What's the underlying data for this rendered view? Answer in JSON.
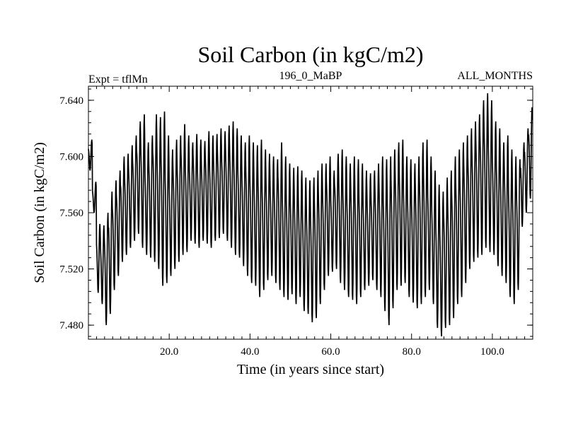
{
  "chart_data": {
    "type": "line",
    "title": "Soil Carbon (in kgC/m2)",
    "subtitle_left": "Expt = tflMn",
    "subtitle_center": "196_0_MaBP",
    "subtitle_right": "ALL_MONTHS",
    "xlabel": "Time (in years since start)",
    "ylabel": "Soil Carbon (in kgC/m2)",
    "xlim": [
      0,
      110
    ],
    "ylim": [
      7.47,
      7.65
    ],
    "xticks": [
      20,
      40,
      60,
      80,
      100
    ],
    "xtick_labels": [
      "20.0",
      "40.0",
      "60.0",
      "80.0",
      "100.0"
    ],
    "yticks": [
      7.48,
      7.52,
      7.56,
      7.6,
      7.64
    ],
    "ytick_labels": [
      "7.480",
      "7.520",
      "7.560",
      "7.600",
      "7.640"
    ],
    "grid": false,
    "series": [
      {
        "name": "Soil Carbon",
        "samples_per_year": 12,
        "annual_highs": [
          7.612,
          7.582,
          7.552,
          7.551,
          7.56,
          7.575,
          7.583,
          7.59,
          7.6,
          7.602,
          7.608,
          7.615,
          7.625,
          7.63,
          7.61,
          7.615,
          7.63,
          7.628,
          7.632,
          7.615,
          7.605,
          7.612,
          7.615,
          7.623,
          7.615,
          7.61,
          7.616,
          7.612,
          7.611,
          7.618,
          7.615,
          7.616,
          7.62,
          7.618,
          7.622,
          7.625,
          7.62,
          7.615,
          7.61,
          7.615,
          7.61,
          7.608,
          7.612,
          7.605,
          7.602,
          7.6,
          7.598,
          7.61,
          7.6,
          7.595,
          7.592,
          7.593,
          7.59,
          7.585,
          7.583,
          7.585,
          7.59,
          7.595,
          7.595,
          7.6,
          7.59,
          7.602,
          7.605,
          7.6,
          7.595,
          7.6,
          7.598,
          7.595,
          7.59,
          7.588,
          7.59,
          7.595,
          7.6,
          7.598,
          7.6,
          7.605,
          7.61,
          7.612,
          7.6,
          7.598,
          7.595,
          7.6,
          7.61,
          7.612,
          7.6,
          7.59,
          7.58,
          7.575,
          7.585,
          7.59,
          7.6,
          7.605,
          7.61,
          7.615,
          7.62,
          7.625,
          7.63,
          7.64,
          7.645,
          7.64,
          7.625,
          7.62,
          7.61,
          7.615,
          7.605,
          7.6,
          7.598,
          7.61,
          7.62,
          7.635
        ],
        "annual_lows": [
          7.59,
          7.56,
          7.503,
          7.495,
          7.48,
          7.488,
          7.505,
          7.515,
          7.525,
          7.53,
          7.535,
          7.54,
          7.545,
          7.535,
          7.53,
          7.528,
          7.525,
          7.52,
          7.508,
          7.51,
          7.515,
          7.52,
          7.525,
          7.53,
          7.532,
          7.54,
          7.538,
          7.535,
          7.54,
          7.538,
          7.535,
          7.54,
          7.542,
          7.545,
          7.54,
          7.535,
          7.53,
          7.528,
          7.522,
          7.515,
          7.51,
          7.508,
          7.5,
          7.505,
          7.512,
          7.515,
          7.51,
          7.505,
          7.5,
          7.498,
          7.502,
          7.495,
          7.5,
          7.49,
          7.488,
          7.482,
          7.485,
          7.495,
          7.505,
          7.515,
          7.518,
          7.52,
          7.51,
          7.505,
          7.5,
          7.498,
          7.495,
          7.5,
          7.505,
          7.508,
          7.512,
          7.505,
          7.5,
          7.49,
          7.48,
          7.492,
          7.505,
          7.508,
          7.51,
          7.5,
          7.496,
          7.492,
          7.495,
          7.5,
          7.505,
          7.495,
          7.478,
          7.472,
          7.478,
          7.48,
          7.485,
          7.495,
          7.5,
          7.51,
          7.52,
          7.525,
          7.528,
          7.53,
          7.535,
          7.532,
          7.53,
          7.522,
          7.515,
          7.51,
          7.5,
          7.495,
          7.505,
          7.55,
          7.56,
          7.57
        ]
      }
    ]
  }
}
